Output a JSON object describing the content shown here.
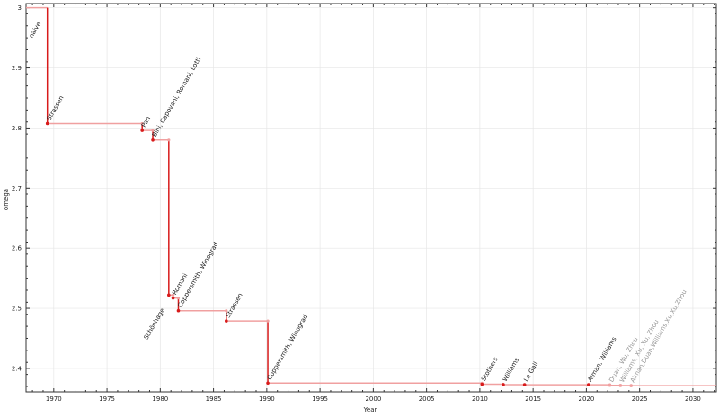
{
  "chart_data": {
    "type": "line",
    "step": true,
    "title": "",
    "xlabel": "Year",
    "ylabel": "omega",
    "xlim": [
      1967.4,
      2032.2
    ],
    "ylim": [
      2.361,
      3.007
    ],
    "xticks": [
      1970,
      1975,
      1980,
      1985,
      1990,
      1995,
      2000,
      2005,
      2010,
      2015,
      2020,
      2025,
      2030
    ],
    "yticks": [
      2.4,
      2.5,
      2.6,
      2.7,
      2.8,
      2.9,
      3
    ],
    "grid": true,
    "colors": {
      "line": "#d81b1b",
      "line_light": "#f0a0a0",
      "recent": "#f0a0a0",
      "recent_text": "#999999"
    },
    "points": [
      {
        "x": 1967.4,
        "y": 3.0,
        "label": "naive",
        "recent": false
      },
      {
        "x": 1969.4,
        "y": 2.8074,
        "label": "Strassen",
        "recent": false
      },
      {
        "x": 1978.3,
        "y": 2.796,
        "label": "Pan",
        "recent": false
      },
      {
        "x": 1979.3,
        "y": 2.78,
        "label": "Bini, Capovani, Romani, Lotti",
        "recent": false
      },
      {
        "x": 1980.8,
        "y": 2.522,
        "label": "Schönhage",
        "recent": false
      },
      {
        "x": 1981.2,
        "y": 2.517,
        "label": "Romani",
        "recent": false
      },
      {
        "x": 1981.7,
        "y": 2.496,
        "label": "Coppersmith, Winograd",
        "recent": false
      },
      {
        "x": 1986.2,
        "y": 2.479,
        "label": "Strassen",
        "recent": false
      },
      {
        "x": 1990.1,
        "y": 2.3755,
        "label": "Coppersmith, Winograd",
        "recent": false
      },
      {
        "x": 2010.2,
        "y": 2.3737,
        "label": "Stothers",
        "recent": false
      },
      {
        "x": 2012.2,
        "y": 2.3729,
        "label": "Williams",
        "recent": false
      },
      {
        "x": 2014.2,
        "y": 2.37286,
        "label": "Le Gall",
        "recent": false
      },
      {
        "x": 2020.2,
        "y": 2.37286,
        "label": "Alman, Williams",
        "recent": false
      },
      {
        "x": 2022.2,
        "y": 2.37187,
        "label": "Duan, Wu, Zhou",
        "recent": true
      },
      {
        "x": 2023.2,
        "y": 2.37155,
        "label": "Williams, Xu, Xu, Zhou",
        "recent": true
      },
      {
        "x": 2024.2,
        "y": 2.37134,
        "label": "Alman,Duan,Williams,Xu,Xu,Zhou",
        "recent": true
      }
    ]
  }
}
